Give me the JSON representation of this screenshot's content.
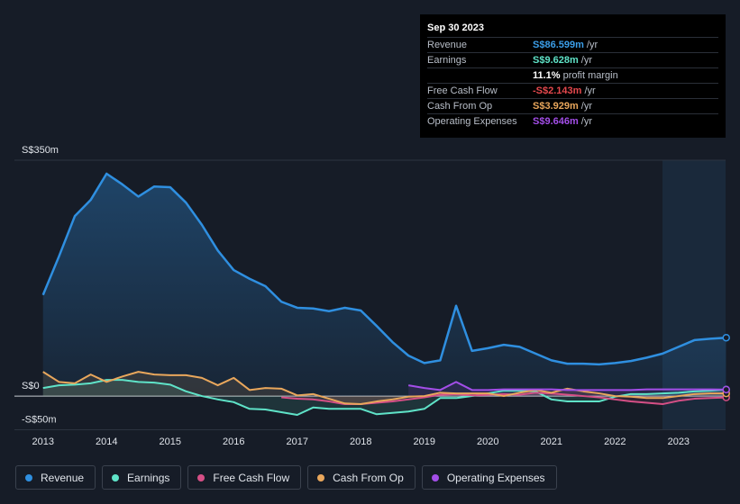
{
  "chart_data": {
    "type": "line",
    "x": [
      2013,
      2013.25,
      2013.5,
      2013.75,
      2014,
      2014.25,
      2014.5,
      2014.75,
      2015,
      2015.25,
      2015.5,
      2015.75,
      2016,
      2016.25,
      2016.5,
      2016.75,
      2017,
      2017.25,
      2017.5,
      2017.75,
      2018,
      2018.25,
      2018.5,
      2018.75,
      2019,
      2019.25,
      2019.5,
      2019.75,
      2020,
      2020.25,
      2020.5,
      2020.75,
      2021,
      2021.25,
      2021.5,
      2021.75,
      2022,
      2022.25,
      2022.5,
      2022.75,
      2023,
      2023.25,
      2023.5,
      2023.75
    ],
    "xlim": [
      2012.55,
      2023.74
    ],
    "xticks": [
      2013,
      2014,
      2015,
      2016,
      2017,
      2018,
      2019,
      2020,
      2021,
      2022,
      2023
    ],
    "ylim": [
      -50,
      350
    ],
    "yticks": [
      {
        "value": 350,
        "label": "S$350m"
      },
      {
        "value": 0,
        "label": "S$0"
      },
      {
        "value": -50,
        "label": "-S$50m"
      }
    ],
    "series": [
      {
        "name": "Revenue",
        "color": "#2f8fe0",
        "values": [
          150,
          207,
          267,
          291,
          330,
          314,
          296,
          311,
          310,
          287,
          254,
          216,
          187,
          174,
          163,
          140,
          131,
          130,
          126,
          131,
          127,
          104,
          80,
          60,
          49,
          53,
          134,
          67,
          71,
          76,
          73,
          63,
          53,
          48,
          48,
          47,
          49,
          52,
          57,
          63,
          73,
          83,
          85,
          86.599
        ]
      },
      {
        "name": "Earnings",
        "color": "#5fe3c8",
        "values": [
          12,
          16,
          17,
          19,
          24,
          24,
          21,
          20,
          17,
          7,
          0,
          -5,
          -9,
          -19,
          -20,
          -24,
          -28,
          -17,
          -19,
          -19,
          -19,
          -27,
          -25,
          -23,
          -19,
          -3,
          -3,
          0,
          4,
          8,
          8,
          7,
          -5,
          -8,
          -8,
          -8,
          -1,
          3,
          3,
          4,
          5,
          7,
          8,
          9.628
        ]
      },
      {
        "name": "Free Cash Flow",
        "color": "#d64f86",
        "values": [
          null,
          null,
          null,
          null,
          null,
          null,
          null,
          null,
          null,
          null,
          null,
          null,
          null,
          null,
          null,
          -2,
          -4,
          -5,
          -8,
          -12,
          -12,
          -10,
          -8,
          -5,
          -2,
          2,
          3,
          1,
          2,
          3,
          2,
          5,
          4,
          2,
          0,
          -2,
          -5,
          -8,
          -10,
          -12,
          -7,
          -4,
          -3,
          -2.143
        ]
      },
      {
        "name": "Cash From Op",
        "color": "#e9a75c",
        "values": [
          36,
          21,
          19,
          32,
          21,
          29,
          36,
          32,
          31,
          31,
          27,
          16,
          27,
          9,
          12,
          11,
          1,
          3,
          -4,
          -11,
          -12,
          -8,
          -5,
          -1,
          0,
          5,
          4,
          4,
          4,
          0,
          5,
          9,
          5,
          11,
          7,
          4,
          0,
          -1,
          -3,
          -3,
          0,
          3,
          4,
          3.929
        ]
      },
      {
        "name": "Operating Expenses",
        "color": "#a34ee8",
        "values": [
          null,
          null,
          null,
          null,
          null,
          null,
          null,
          null,
          null,
          null,
          null,
          null,
          null,
          null,
          null,
          null,
          null,
          null,
          null,
          null,
          null,
          null,
          null,
          16,
          12,
          9,
          21,
          9,
          9,
          10,
          10,
          10,
          10,
          9,
          9,
          9,
          9,
          9,
          10,
          10,
          10,
          10,
          10,
          9.646
        ]
      }
    ]
  },
  "tooltip": {
    "date": "Sep 30 2023",
    "unit": "/yr",
    "rows": [
      {
        "label": "Revenue",
        "value": "S$86.599m"
      },
      {
        "label": "Earnings",
        "value": "S$9.628m"
      },
      {
        "label": "Free Cash Flow",
        "value": "-S$2.143m"
      },
      {
        "label": "Cash From Op",
        "value": "S$3.929m"
      },
      {
        "label": "Operating Expenses",
        "value": "S$9.646m"
      }
    ],
    "margin": {
      "value": "11.1%",
      "text": "profit margin"
    }
  }
}
